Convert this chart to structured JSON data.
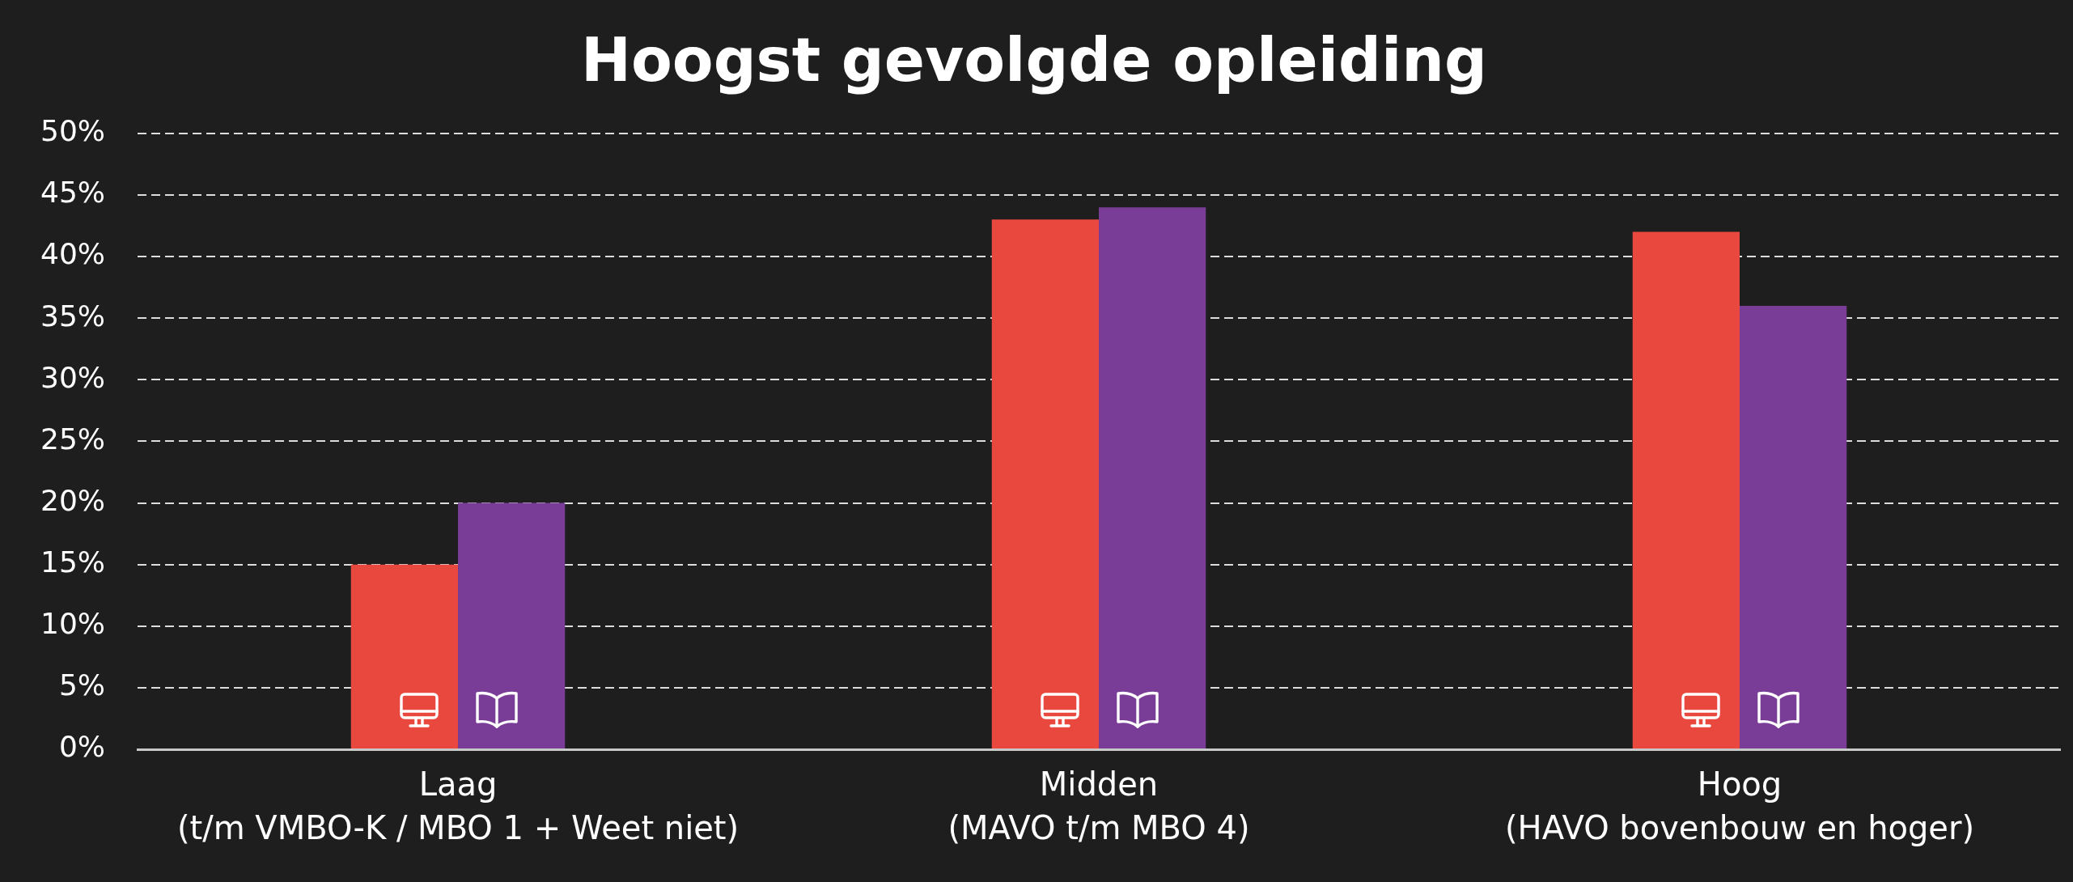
{
  "chart_data": {
    "type": "bar",
    "title": "Hoogst gevolgde opleiding",
    "categories": [
      "Laag\n(t/m VMBO-K / MBO 1 + Weet niet)",
      "Midden\n(MAVO t/m MBO 4)",
      "Hoog\n(HAVO bovenbouw en hoger)"
    ],
    "series": [
      {
        "color": "#e8483e",
        "values": [
          15,
          43,
          42
        ]
      },
      {
        "color": "#793c97",
        "values": [
          20,
          44,
          36
        ]
      }
    ],
    "ylim": [
      0,
      50
    ],
    "yticks": [
      {
        "value": 0,
        "label": "0%"
      },
      {
        "value": 5,
        "label": "5%"
      },
      {
        "value": 10,
        "label": "10%"
      },
      {
        "value": 15,
        "label": "15%"
      },
      {
        "value": 20,
        "label": "20%"
      },
      {
        "value": 25,
        "label": "25%"
      },
      {
        "value": 30,
        "label": "30%"
      },
      {
        "value": 35,
        "label": "35%"
      },
      {
        "value": 40,
        "label": "40%"
      },
      {
        "value": 45,
        "label": "45%"
      },
      {
        "value": 50,
        "label": "50%"
      }
    ],
    "grid": "y"
  }
}
